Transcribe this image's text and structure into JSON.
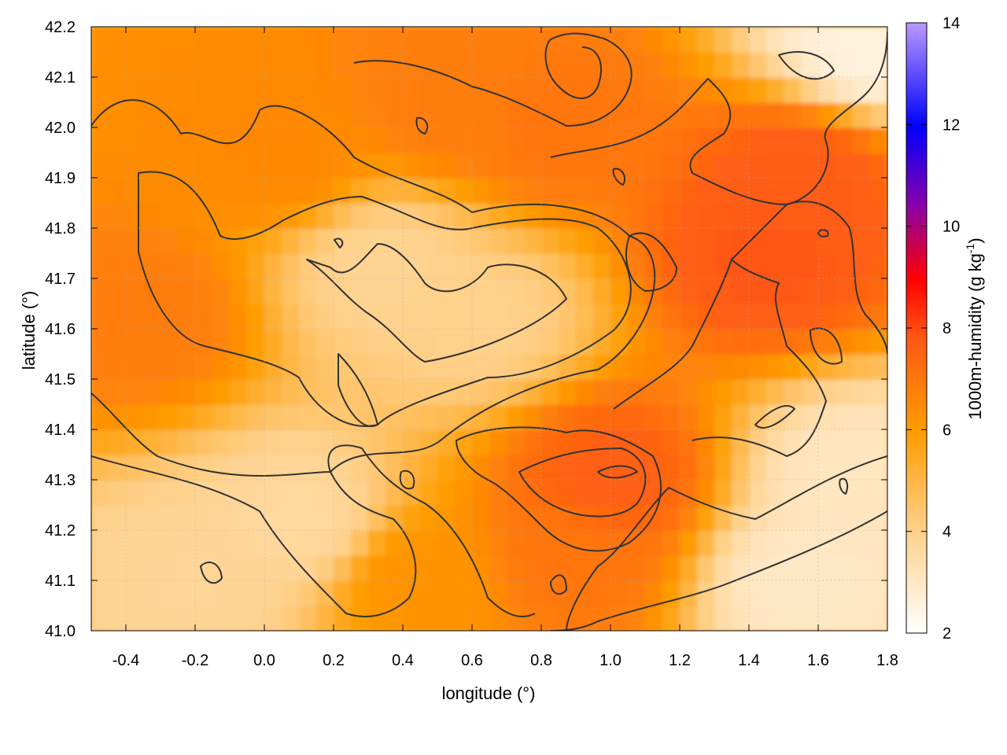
{
  "chart_data": {
    "type": "heatmap",
    "xlabel": "longitude (°)",
    "ylabel": "latitude (°)",
    "colorbar_label": "1000m-humidity (g kg",
    "colorbar_label_sup": "-1",
    "colorbar_label_end": ")",
    "xlim": [
      -0.5,
      1.8
    ],
    "ylim": [
      41.0,
      42.2
    ],
    "clim": [
      2,
      14
    ],
    "xticks": [
      -0.4,
      -0.2,
      0.0,
      0.2,
      0.4,
      0.6,
      0.8,
      1.0,
      1.2,
      1.4,
      1.6,
      1.8
    ],
    "xtick_labels": [
      "-0.4",
      "-0.2",
      "0.0",
      "0.2",
      "0.4",
      "0.6",
      "0.8",
      "1.0",
      "1.2",
      "1.4",
      "1.6",
      "1.8"
    ],
    "yticks": [
      41.0,
      41.1,
      41.2,
      41.3,
      41.4,
      41.5,
      41.6,
      41.7,
      41.8,
      41.9,
      42.0,
      42.1,
      42.2
    ],
    "ytick_labels": [
      "41.0",
      "41.1",
      "41.2",
      "41.3",
      "41.4",
      "41.5",
      "41.6",
      "41.7",
      "41.8",
      "41.9",
      "42.0",
      "42.1",
      "42.2"
    ],
    "cticks": [
      2,
      4,
      6,
      8,
      10,
      12,
      14
    ],
    "ctick_labels": [
      "2",
      "4",
      "6",
      "8",
      "10",
      "12",
      "14"
    ],
    "colormap": [
      "#ffffff",
      "#ffd089",
      "#ff9c00",
      "#ff5a14",
      "#ff0000",
      "#8a00a8",
      "#0000ff",
      "#b99aff"
    ],
    "grid": true,
    "field_centers": [
      {
        "lon": -0.35,
        "lat": 41.62,
        "value": 6.8
      },
      {
        "lon": 0.05,
        "lat": 41.95,
        "value": 6.5
      },
      {
        "lon": 0.55,
        "lat": 42.05,
        "value": 6.8
      },
      {
        "lon": 0.85,
        "lat": 42.0,
        "value": 7.0
      },
      {
        "lon": 1.45,
        "lat": 41.75,
        "value": 7.8
      },
      {
        "lon": 1.55,
        "lat": 41.9,
        "value": 7.7
      },
      {
        "lon": 1.0,
        "lat": 41.3,
        "value": 7.6
      },
      {
        "lon": 0.9,
        "lat": 41.15,
        "value": 7.0
      },
      {
        "lon": 0.35,
        "lat": 41.72,
        "value": 3.9
      },
      {
        "lon": 0.6,
        "lat": 41.62,
        "value": 4.0
      },
      {
        "lon": 0.1,
        "lat": 41.22,
        "value": 3.7
      },
      {
        "lon": -0.2,
        "lat": 41.1,
        "value": 3.8
      },
      {
        "lon": 1.55,
        "lat": 41.1,
        "value": 3.0
      },
      {
        "lon": 1.7,
        "lat": 41.3,
        "value": 3.1
      },
      {
        "lon": 1.75,
        "lat": 42.17,
        "value": 2.6
      },
      {
        "lon": 0.45,
        "lat": 41.1,
        "value": 6.2
      }
    ]
  }
}
